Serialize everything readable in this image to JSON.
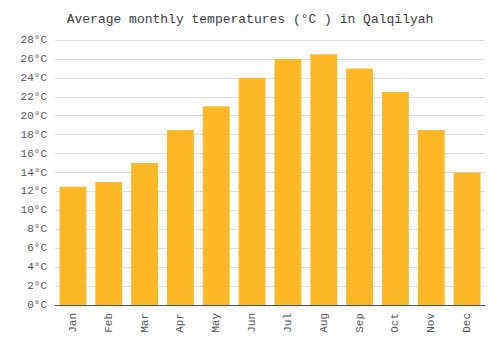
{
  "chart_data": {
    "type": "bar",
    "title": "Average monthly temperatures (°C ) in Qalqīlyah",
    "categories": [
      "Jan",
      "Feb",
      "Mar",
      "Apr",
      "May",
      "Jun",
      "Jul",
      "Aug",
      "Sep",
      "Oct",
      "Nov",
      "Dec"
    ],
    "values": [
      12.5,
      13.0,
      15.0,
      18.5,
      21.0,
      24.0,
      26.0,
      26.5,
      25.0,
      22.5,
      18.5,
      14.0
    ],
    "color": "#FDB827",
    "ylim": [
      0,
      28
    ],
    "yticks": [
      {
        "value": 0,
        "label": "0°C"
      },
      {
        "value": 2,
        "label": "2°C"
      },
      {
        "value": 4,
        "label": "4°C"
      },
      {
        "value": 6,
        "label": "6°C"
      },
      {
        "value": 8,
        "label": "8°C"
      },
      {
        "value": 10,
        "label": "10°C"
      },
      {
        "value": 12,
        "label": "12°C"
      },
      {
        "value": 14,
        "label": "14°C"
      },
      {
        "value": 16,
        "label": "16°C"
      },
      {
        "value": 18,
        "label": "18°C"
      },
      {
        "value": 20,
        "label": "20°C"
      },
      {
        "value": 22,
        "label": "22°C"
      },
      {
        "value": 24,
        "label": "24°C"
      },
      {
        "value": 26,
        "label": "26°C"
      },
      {
        "value": 28,
        "label": "28°C"
      }
    ],
    "grid": true
  }
}
